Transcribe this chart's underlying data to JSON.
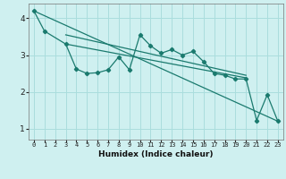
{
  "title": "",
  "xlabel": "Humidex (Indice chaleur)",
  "ylabel": "",
  "bg_color": "#cff0f0",
  "grid_color": "#aadddd",
  "line_color": "#1a7a6e",
  "xlim": [
    -0.5,
    23.5
  ],
  "ylim": [
    0.7,
    4.4
  ],
  "yticks": [
    1,
    2,
    3,
    4
  ],
  "xticks": [
    0,
    1,
    2,
    3,
    4,
    5,
    6,
    7,
    8,
    9,
    10,
    11,
    12,
    13,
    14,
    15,
    16,
    17,
    18,
    19,
    20,
    21,
    22,
    23
  ],
  "line1_x": [
    0,
    1,
    3,
    4,
    5,
    6,
    7,
    8,
    9,
    10,
    11,
    12,
    13,
    14,
    15,
    16,
    17,
    18,
    19,
    20,
    21,
    22,
    23
  ],
  "line1_y": [
    4.2,
    3.65,
    3.3,
    2.62,
    2.5,
    2.52,
    2.6,
    2.95,
    2.6,
    3.55,
    3.25,
    3.05,
    3.15,
    3.0,
    3.1,
    2.82,
    2.5,
    2.45,
    2.35,
    2.35,
    1.22,
    1.92,
    1.2
  ],
  "line2_x": [
    0,
    23
  ],
  "line2_y": [
    4.2,
    1.2
  ],
  "line3_x": [
    3,
    20
  ],
  "line3_y": [
    3.55,
    2.45
  ],
  "line4_x": [
    3,
    20
  ],
  "line4_y": [
    3.3,
    2.38
  ]
}
